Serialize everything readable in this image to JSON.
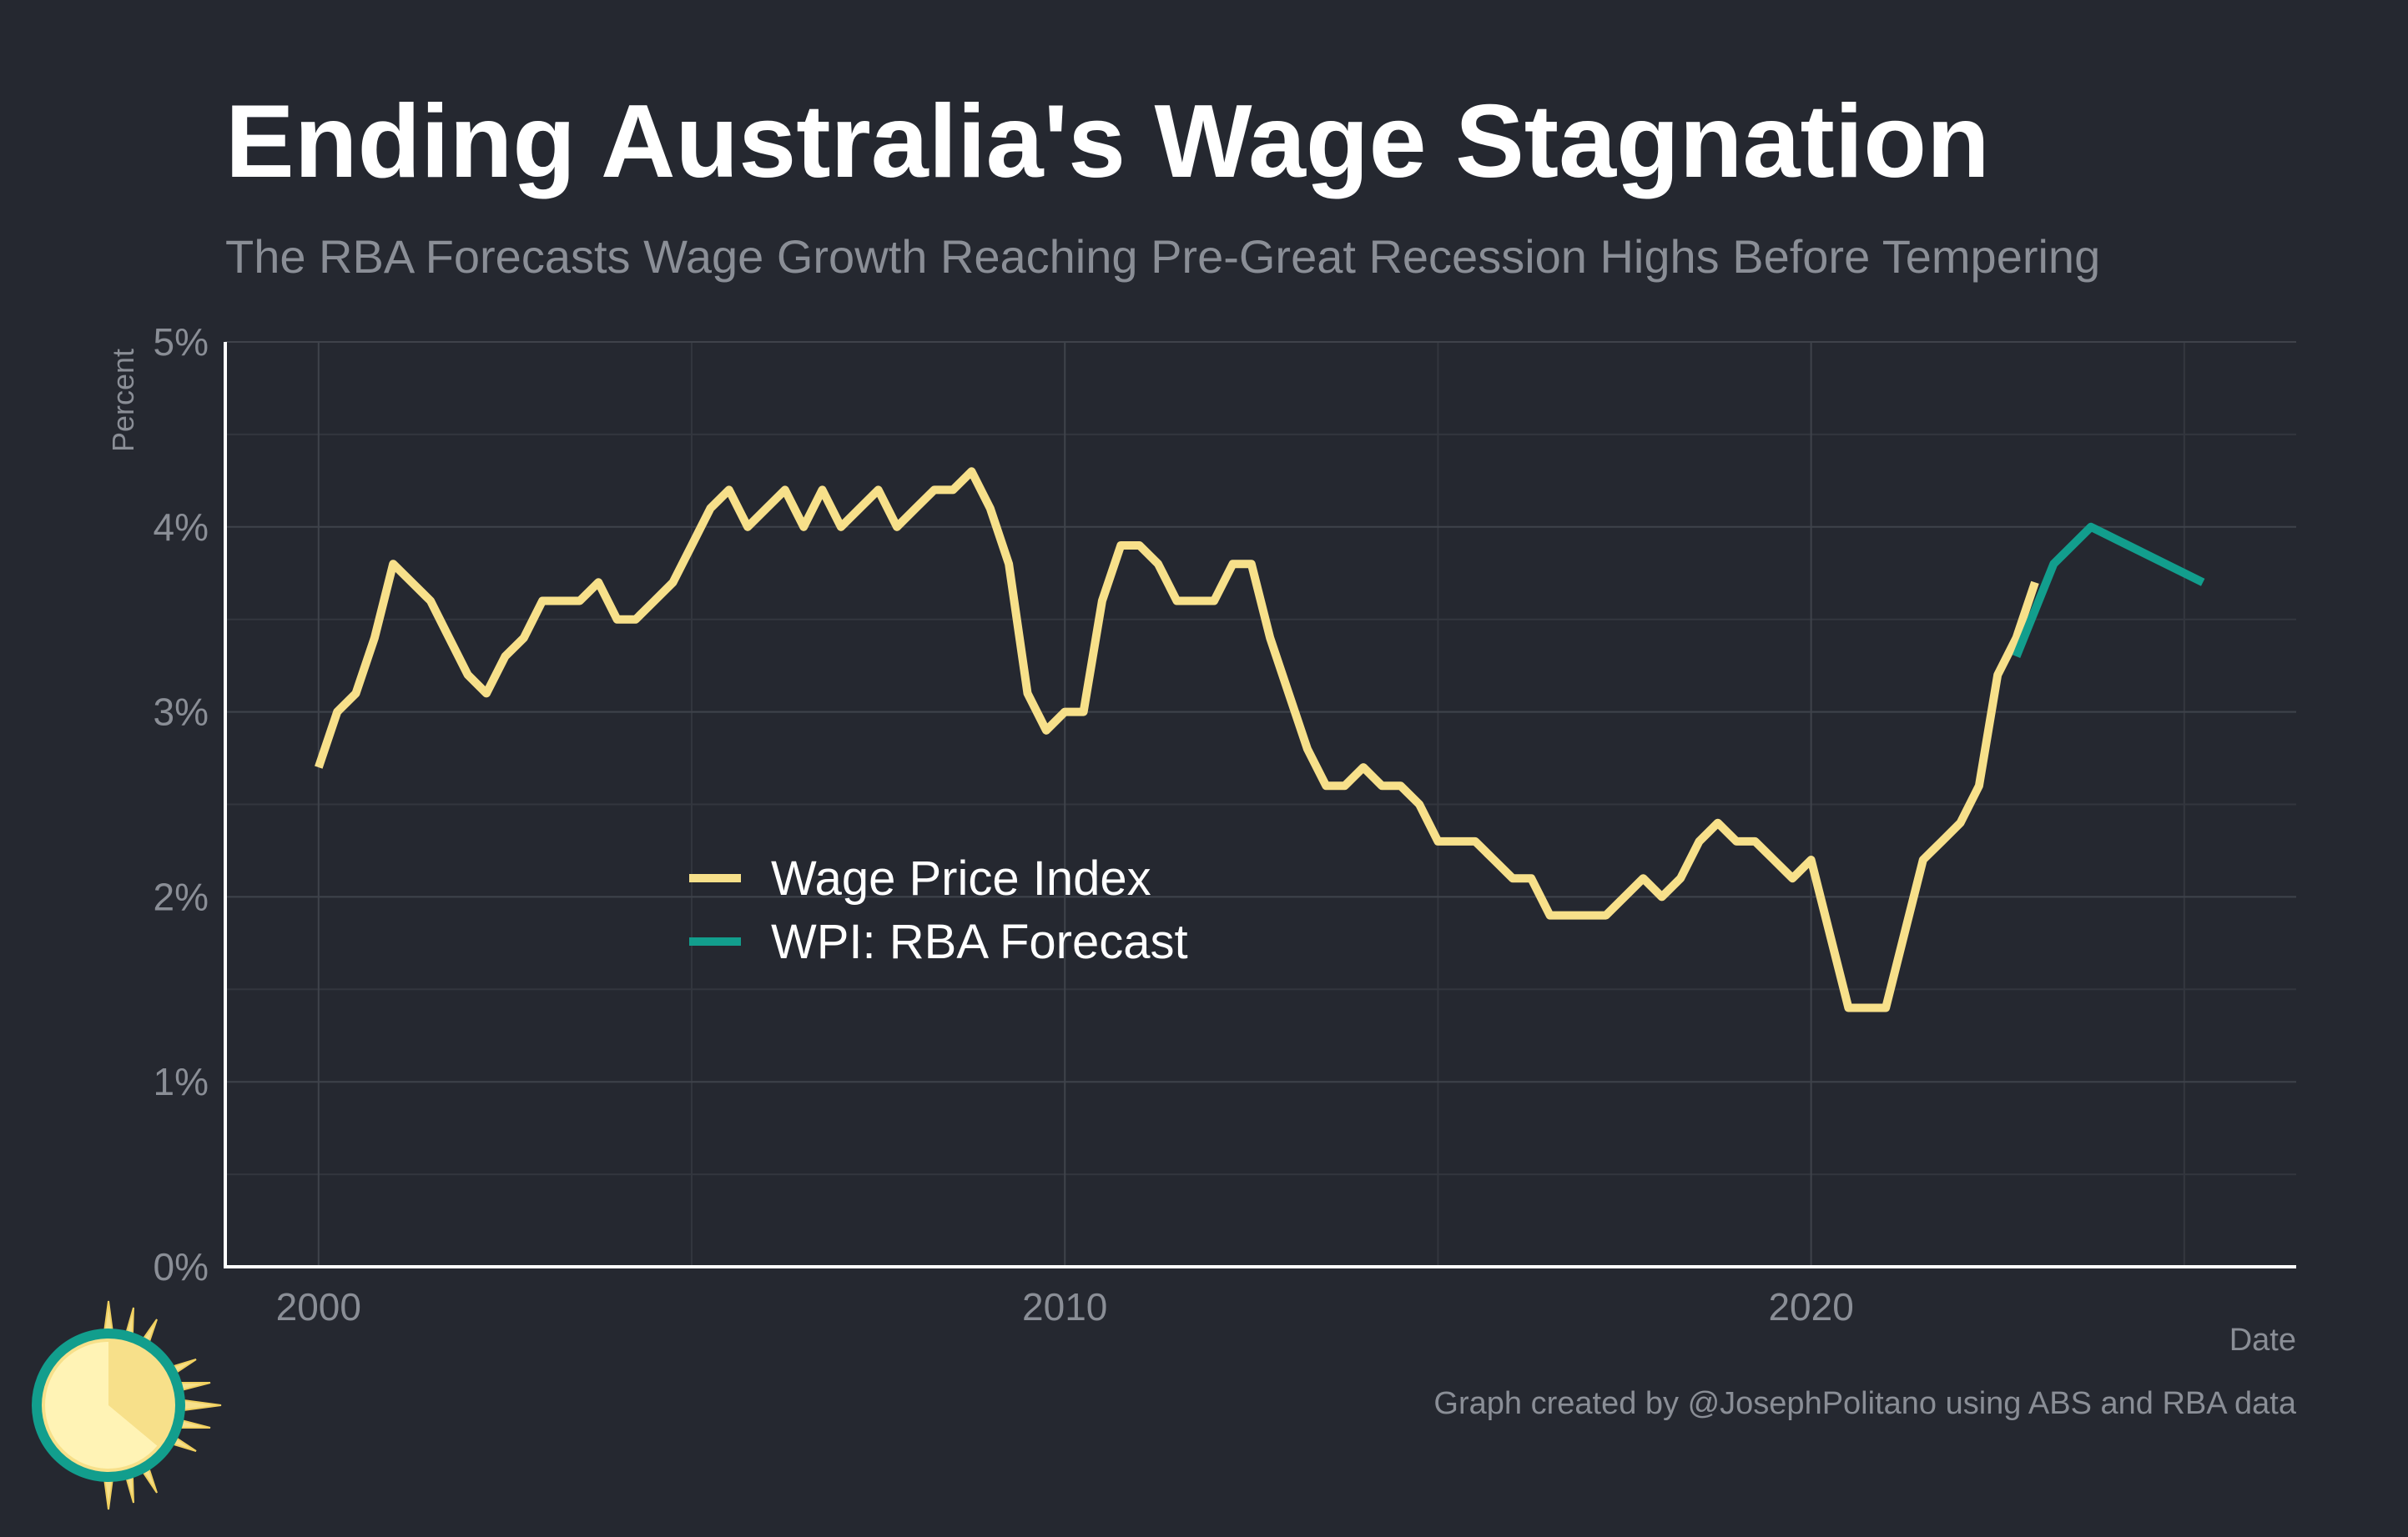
{
  "chart_data": {
    "type": "line",
    "title": "Ending Australia's Wage Stagnation",
    "subtitle": "The RBA Forecasts Wage Growth Reaching Pre-Great Recession Highs Before Tempering",
    "xlabel": "Date",
    "ylabel": "Percent",
    "caption": "Graph created by @JosephPolitano using ABS and RBA data",
    "xlim": [
      1998.75,
      2026.5
    ],
    "ylim": [
      0,
      5
    ],
    "x_ticks": [
      {
        "value": 2000,
        "label": "2000"
      },
      {
        "value": 2010,
        "label": "2010"
      },
      {
        "value": 2020,
        "label": "2020"
      }
    ],
    "y_ticks": [
      {
        "value": 0,
        "label": "0%"
      },
      {
        "value": 1,
        "label": "1%"
      },
      {
        "value": 2,
        "label": "2%"
      },
      {
        "value": 3,
        "label": "3%"
      },
      {
        "value": 4,
        "label": "4%"
      },
      {
        "value": 5,
        "label": "5%"
      }
    ],
    "grid": true,
    "legend_position": "center-left",
    "series": [
      {
        "name": "Wage Price Index",
        "color": "#f7e08a",
        "x": [
          2000.0,
          2000.25,
          2000.5,
          2000.75,
          2001.0,
          2001.25,
          2001.5,
          2001.75,
          2002.0,
          2002.25,
          2002.5,
          2002.75,
          2003.0,
          2003.25,
          2003.5,
          2003.75,
          2004.0,
          2004.25,
          2004.5,
          2004.75,
          2005.0,
          2005.25,
          2005.5,
          2005.75,
          2006.0,
          2006.25,
          2006.5,
          2006.75,
          2007.0,
          2007.25,
          2007.5,
          2007.75,
          2008.0,
          2008.25,
          2008.5,
          2008.75,
          2009.0,
          2009.25,
          2009.5,
          2009.75,
          2010.0,
          2010.25,
          2010.5,
          2010.75,
          2011.0,
          2011.25,
          2011.5,
          2011.75,
          2012.0,
          2012.25,
          2012.5,
          2012.75,
          2013.0,
          2013.25,
          2013.5,
          2013.75,
          2014.0,
          2014.25,
          2014.5,
          2014.75,
          2015.0,
          2015.25,
          2015.5,
          2015.75,
          2016.0,
          2016.25,
          2016.5,
          2016.75,
          2017.0,
          2017.25,
          2017.5,
          2017.75,
          2018.0,
          2018.25,
          2018.5,
          2018.75,
          2019.0,
          2019.25,
          2019.5,
          2019.75,
          2020.0,
          2020.25,
          2020.5,
          2020.75,
          2021.0,
          2021.25,
          2021.5,
          2021.75,
          2022.0,
          2022.25,
          2022.5,
          2022.75,
          2023.0
        ],
        "values": [
          2.7,
          3.0,
          3.1,
          3.4,
          3.8,
          3.7,
          3.6,
          3.4,
          3.2,
          3.1,
          3.3,
          3.4,
          3.6,
          3.6,
          3.6,
          3.7,
          3.5,
          3.5,
          3.6,
          3.7,
          3.9,
          4.1,
          4.2,
          4.0,
          4.1,
          4.2,
          4.0,
          4.2,
          4.0,
          4.1,
          4.2,
          4.0,
          4.1,
          4.2,
          4.2,
          4.3,
          4.1,
          3.8,
          3.1,
          2.9,
          3.0,
          3.0,
          3.6,
          3.9,
          3.9,
          3.8,
          3.6,
          3.6,
          3.6,
          3.8,
          3.8,
          3.4,
          3.1,
          2.8,
          2.6,
          2.6,
          2.7,
          2.6,
          2.6,
          2.5,
          2.3,
          2.3,
          2.3,
          2.2,
          2.1,
          2.1,
          1.9,
          1.9,
          1.9,
          1.9,
          2.0,
          2.1,
          2.0,
          2.1,
          2.3,
          2.4,
          2.3,
          2.3,
          2.2,
          2.1,
          2.2,
          1.8,
          1.4,
          1.4,
          1.4,
          1.8,
          2.2,
          2.3,
          2.4,
          2.6,
          3.2,
          3.4,
          3.7
        ]
      },
      {
        "name": "WPI: RBA Forecast",
        "color": "#129e8d",
        "x": [
          2022.75,
          2023.25,
          2023.75,
          2024.25,
          2024.75,
          2025.25
        ],
        "values": [
          3.3,
          3.8,
          4.0,
          3.9,
          3.8,
          3.7
        ]
      }
    ]
  }
}
